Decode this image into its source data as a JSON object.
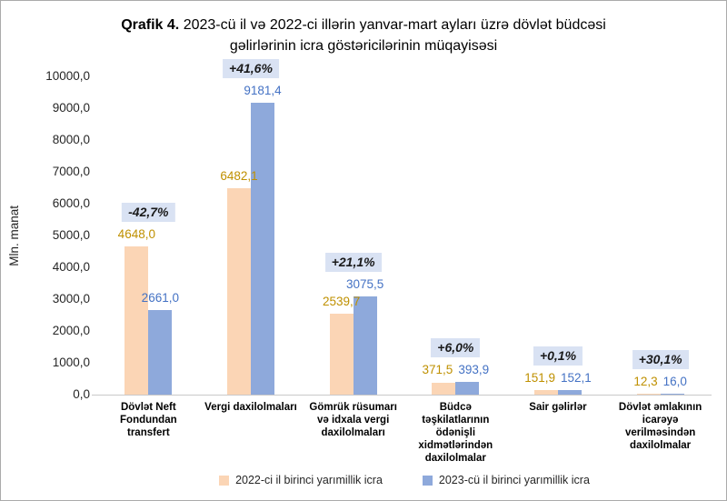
{
  "title": {
    "prefix": "Qrafik 4.",
    "text": "2023-cü il və 2022-ci illərin yanvar-mart ayları üzrə dövlət büdcəsi gəlirlərinin icra göstəricilərinin müqayisəsi"
  },
  "chart_data": {
    "type": "bar",
    "ylabel": "Mln. manat",
    "ylim": [
      0,
      10000
    ],
    "ytick_labels": [
      "0,0",
      "1000,0",
      "2000,0",
      "3000,0",
      "4000,0",
      "5000,0",
      "6000,0",
      "7000,0",
      "8000,0",
      "9000,0",
      "10000,0"
    ],
    "grid": false,
    "legend_position": "bottom",
    "categories": [
      "Dövlət Neft Fondundan transfert",
      "Vergi daxilolmaları",
      "Gömrük rüsumarı və idxala vergi daxilolmaları",
      "Büdcə təşkilatlarının ödənişli xidmətlərindən daxilolmalar",
      "Sair gəlirlər",
      "Dövlət əmlakının icarəyə verilməsindən daxilolmalar"
    ],
    "series": [
      {
        "name": "2022-ci il birinci yarımillik icra",
        "color": "#FBD5B5",
        "label_color": "#BF9000",
        "values": [
          4648.0,
          6482.1,
          2539.7,
          371.5,
          151.9,
          12.3
        ],
        "value_labels": [
          "4648,0",
          "6482,1",
          "2539,7",
          "371,5",
          "151,9",
          "12,3"
        ]
      },
      {
        "name": "2023-cü il birinci yarımillik icra",
        "color": "#8EA9DB",
        "label_color": "#4472C4",
        "values": [
          2661.0,
          9181.4,
          3075.5,
          393.9,
          152.1,
          16.0
        ],
        "value_labels": [
          "2661,0",
          "9181,4",
          "3075,5",
          "393,9",
          "152,1",
          "16,0"
        ]
      }
    ],
    "change_labels": [
      "-42,7%",
      "+41,6%",
      "+21,1%",
      "+6,0%",
      "+0,1%",
      "+30,1%"
    ],
    "badge_bg": "#D9E2F3",
    "axis_color": "#C9C9C9"
  }
}
